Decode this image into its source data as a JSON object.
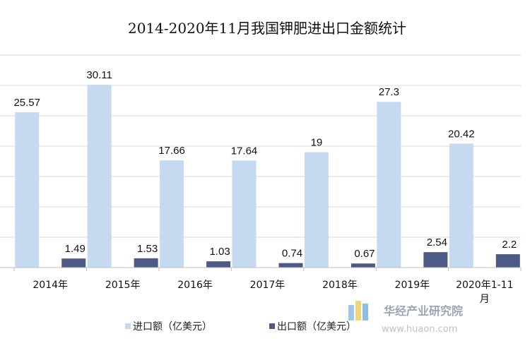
{
  "chart_data": {
    "type": "bar",
    "title": "2014-2020年11月我国钾肥进出口金额统计",
    "categories": [
      "2014年",
      "2015年",
      "2016年",
      "2017年",
      "2018年",
      "2019年",
      "2020年1-11月"
    ],
    "series": [
      {
        "name": "进口额（亿美元）",
        "values": [
          25.57,
          30.11,
          17.66,
          17.64,
          19,
          27.3,
          20.42
        ],
        "color": "#c5d9f1"
      },
      {
        "name": "出口额（亿美元）",
        "values": [
          1.49,
          1.53,
          1.03,
          0.74,
          0.67,
          2.54,
          2.2
        ],
        "color": "#4d5a86"
      }
    ],
    "data_labels": [
      [
        "25.57",
        "30.11",
        "17.66",
        "17.64",
        "19",
        "27.3",
        "20.42"
      ],
      [
        "1.49",
        "1.53",
        "1.03",
        "0.74",
        "0.67",
        "2.54",
        "2.2"
      ]
    ],
    "ylim": [
      0,
      35
    ],
    "ytick_step": 5,
    "grid": true,
    "legend": "bottom"
  },
  "watermark": {
    "text": "华经产业研究院",
    "url": "www.huaon.com"
  }
}
